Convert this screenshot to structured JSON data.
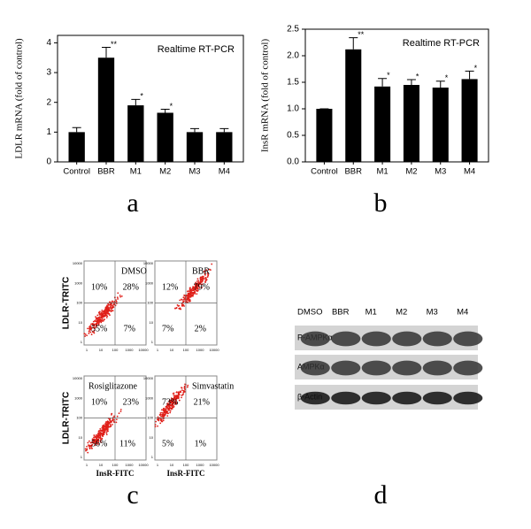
{
  "chart_data": [
    {
      "type": "bar",
      "annotation": "Realtime RT-PCR",
      "ylabel": "LDLR mRNA (fold of control)",
      "panel": "a",
      "categories": [
        "Control",
        "BBR",
        "M1",
        "M2",
        "M3",
        "M4"
      ],
      "values": [
        1,
        3.5,
        1.9,
        1.65,
        1,
        1
      ],
      "errors": [
        0.15,
        0.35,
        0.2,
        0.12,
        0.12,
        0.12
      ],
      "value_annotations": [
        null,
        "**",
        "*",
        "*",
        null,
        null
      ],
      "color": "#000000",
      "ylim": [
        0,
        4.25
      ],
      "yticks": [
        0,
        1,
        2,
        3,
        4
      ]
    },
    {
      "type": "bar",
      "annotation": "Realtime RT-PCR",
      "ylabel": "InsR mRNA (fold of control)",
      "panel": "b",
      "categories": [
        "Control",
        "BBR",
        "M1",
        "M2",
        "M3",
        "M4"
      ],
      "values": [
        1,
        2.12,
        1.42,
        1.45,
        1.4,
        1.56
      ],
      "errors": [
        0,
        0.22,
        0.15,
        0.1,
        0.12,
        0.15
      ],
      "value_annotations": [
        null,
        "**",
        "*",
        "*",
        "*",
        "*"
      ],
      "color": "#000000",
      "ylim": [
        0,
        2.5
      ],
      "yticks": [
        {
          "value": 0,
          "label": "0.0"
        },
        0.5,
        {
          "value": 1,
          "label": "1.0"
        },
        1.5,
        {
          "value": 2,
          "label": "2.0"
        },
        2.5
      ]
    }
  ],
  "flow": {
    "panel": "c",
    "ylabel": "LDLR-TRITC",
    "xlabel": "InsR-FITC",
    "axis_ticks": [
      "1",
      "10",
      "100",
      "1000",
      "10000"
    ],
    "panels": [
      {
        "label": "DMSO",
        "ul": "10%",
        "ur": "28%",
        "ll": "55%",
        "lr": "7%"
      },
      {
        "label": "BBR",
        "ul": "12%",
        "ur": "79%",
        "ll": "7%",
        "lr": "2%"
      },
      {
        "label": "Rosiglitazone",
        "ul": "10%",
        "ur": "23%",
        "ll": "56%",
        "lr": "11%"
      },
      {
        "label": "Simvastatin",
        "ul": "73%",
        "ur": "21%",
        "ll": "5%",
        "lr": "1%"
      }
    ]
  },
  "western": {
    "panel": "d",
    "lanes": [
      "DMSO",
      "BBR",
      "M1",
      "M2",
      "M3",
      "M4"
    ],
    "rows": [
      "P-AMPKα",
      "AMPKα",
      "β-Actin"
    ]
  }
}
